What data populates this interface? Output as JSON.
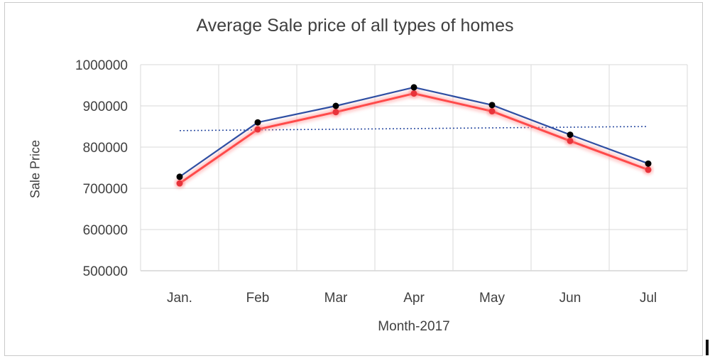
{
  "chart_data": {
    "type": "line",
    "title": "Average Sale price of all types of homes",
    "xlabel": "Month-2017",
    "ylabel": "Sale Price",
    "categories": [
      "Jan.",
      "Feb",
      "Mar",
      "Apr",
      "May",
      "Jun",
      "Jul"
    ],
    "ylim": [
      500000,
      1000000
    ],
    "yticks": [
      "500000",
      "600000",
      "700000",
      "800000",
      "900000",
      "1000000"
    ],
    "series": [
      {
        "values": [
          728000,
          860000,
          900000,
          945000,
          902000,
          830000,
          760000
        ],
        "color": "#2f4fa3",
        "marker_color": "#000000"
      },
      {
        "values": [
          712000,
          843000,
          885000,
          930000,
          887000,
          815000,
          745000
        ],
        "color": "#ff4a4a",
        "marker_color": "#e8333a",
        "glow": true
      }
    ],
    "trendline": {
      "style": "dotted",
      "color": "#2f4fa3",
      "start": 840000,
      "end": 850000
    },
    "grid": true,
    "legend": "none"
  }
}
